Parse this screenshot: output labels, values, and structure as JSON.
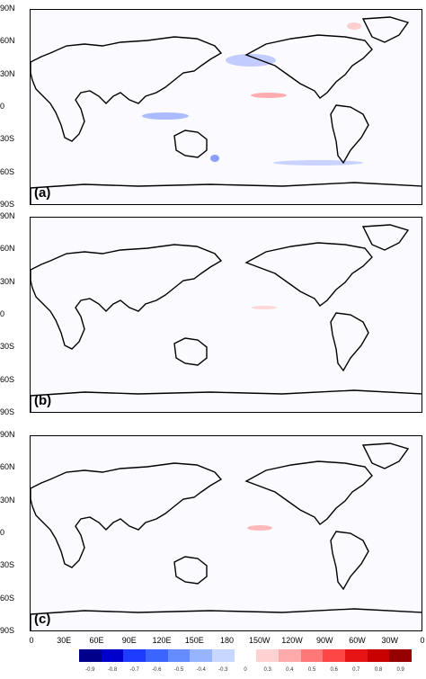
{
  "panels": [
    {
      "label": "(a)"
    },
    {
      "label": "(b)"
    },
    {
      "label": "(c)"
    }
  ],
  "lat_labels": [
    "90N",
    "60N",
    "30N",
    "0",
    "30S",
    "60S",
    "90S"
  ],
  "lon_labels": [
    "0",
    "30E",
    "60E",
    "90E",
    "120E",
    "150E",
    "180",
    "150W",
    "120W",
    "90W",
    "60W",
    "30W",
    "0"
  ],
  "colorbar": {
    "labels": [
      "-0.9",
      "-0.8",
      "-0.7",
      "-0.6",
      "-0.5",
      "-0.4",
      "-0.3",
      "0",
      "0.3",
      "0.4",
      "0.5",
      "0.6",
      "0.7",
      "0.8",
      "0.9"
    ],
    "colors": [
      "#00008b",
      "#0000cd",
      "#1e3cff",
      "#3c64ff",
      "#648cff",
      "#96b4ff",
      "#c8d7ff",
      "#ffffff",
      "#ffd2d2",
      "#ffaaaa",
      "#ff7878",
      "#ff4646",
      "#e61414",
      "#c80000",
      "#960000"
    ]
  }
}
